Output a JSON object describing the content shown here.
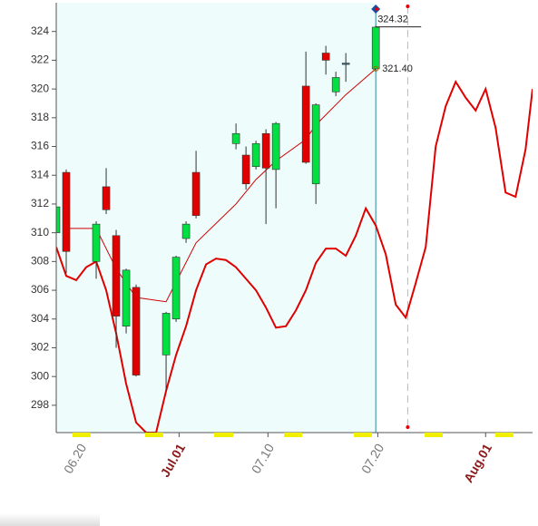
{
  "chart_data": {
    "type": "candlestick",
    "xlim": [
      0,
      47.7
    ],
    "ylim": [
      296.1,
      326.0
    ],
    "yticks": [
      298,
      300,
      302,
      304,
      306,
      308,
      310,
      312,
      314,
      316,
      318,
      320,
      322,
      324
    ],
    "xticks": [
      {
        "value": 2.4,
        "label": "06.20",
        "color": "#777777"
      },
      {
        "value": 12.3,
        "label": "Jul.01",
        "color": "#8b1a1a"
      },
      {
        "value": 21.2,
        "label": "07.10",
        "color": "#777777"
      },
      {
        "value": 32.2,
        "label": "07.20",
        "color": "#777777"
      },
      {
        "value": 43,
        "label": "Aug.01",
        "color": "#8b1a1a"
      }
    ],
    "up_color": "#00e040",
    "down_color": "#e00000",
    "background": "#eefcfc",
    "candles": {
      "x": [
        0,
        1,
        4,
        5,
        6,
        7,
        8,
        11,
        12,
        13,
        14,
        18,
        19,
        20,
        21,
        22,
        25,
        26,
        27,
        28,
        29,
        32
      ],
      "open": [
        310.0,
        314.2,
        308.0,
        313.2,
        309.8,
        303.5,
        306.2,
        301.5,
        304.0,
        309.6,
        314.2,
        316.2,
        315.4,
        314.6,
        316.9,
        314.4,
        320.2,
        313.4,
        322.5,
        319.8,
        321.8,
        321.4
      ],
      "high": [
        313.0,
        314.4,
        310.8,
        314.5,
        310.2,
        307.5,
        306.4,
        304.5,
        308.4,
        310.8,
        315.7,
        317.6,
        316.0,
        316.4,
        317.2,
        317.7,
        322.6,
        319.0,
        323.0,
        321.2,
        322.5,
        324.4
      ],
      "low": [
        309.5,
        307.2,
        306.8,
        311.3,
        302.0,
        303.0,
        300.0,
        299.0,
        303.8,
        309.3,
        311.0,
        315.8,
        313.0,
        314.4,
        310.6,
        311.7,
        314.8,
        312.0,
        321.0,
        319.5,
        320.5,
        321.3
      ],
      "close": [
        311.8,
        308.7,
        310.6,
        311.6,
        304.2,
        307.4,
        300.1,
        304.4,
        308.3,
        310.6,
        311.2,
        316.9,
        313.4,
        316.2,
        314.5,
        317.6,
        314.9,
        318.9,
        322.0,
        320.8,
        321.8,
        324.3
      ]
    },
    "lines": [
      {
        "color": "#d00000",
        "width": 1,
        "x": [
          1,
          4,
          6,
          8,
          11,
          14,
          18,
          20,
          22,
          25,
          26,
          29,
          32
        ],
        "values": [
          310.3,
          310.3,
          307.5,
          305.5,
          305.2,
          309.3,
          312.0,
          313.7,
          315.0,
          316.5,
          317.5,
          319.6,
          321.4
        ]
      },
      {
        "color": "#e00000",
        "width": 2,
        "x": [
          0,
          1,
          2,
          3,
          4,
          5,
          6,
          7,
          8,
          9,
          10,
          11,
          12,
          13,
          14,
          15,
          16,
          17,
          18,
          19,
          20,
          21,
          22,
          23,
          24,
          25,
          26,
          27,
          28,
          29,
          30,
          31,
          32,
          33,
          34,
          35,
          36,
          37,
          38,
          39,
          40,
          41,
          42,
          43,
          44,
          45,
          46,
          47,
          47.7
        ],
        "values": [
          309.0,
          307.0,
          306.7,
          307.6,
          308.0,
          306.0,
          303.0,
          299.5,
          296.8,
          296.1,
          296.1,
          299.0,
          301.5,
          303.5,
          306.0,
          307.8,
          308.2,
          308.1,
          307.6,
          306.8,
          306.0,
          304.8,
          303.4,
          303.5,
          304.6,
          306.0,
          307.9,
          308.9,
          308.9,
          308.4,
          309.8,
          311.7,
          310.5,
          308.5,
          305.0,
          304.1,
          306.5,
          309.0,
          316.0,
          318.8,
          320.5,
          319.4,
          318.5,
          320.0,
          317.3,
          312.8,
          312.5,
          315.8,
          320.0
        ]
      }
    ],
    "current_x": 32,
    "dashed_x": 35.2,
    "annotations": [
      324.32,
      {
        "value": 321.4,
        "label": "321.40"
      }
    ]
  }
}
